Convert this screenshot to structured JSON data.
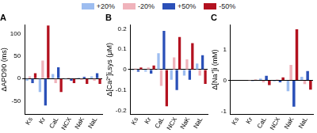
{
  "chart_data": [
    {
      "type": "bar",
      "title": "A",
      "y_label": "ΔAPD90 (ms)",
      "legend": "top",
      "grid": false,
      "categories": [
        "Ks",
        "Kr",
        "CaL",
        "NCX",
        "NaK",
        "NaL"
      ],
      "series": [
        {
          "name": "+20%",
          "color": "#9dbdf0",
          "values": [
            -5,
            -30,
            10,
            -2,
            2,
            5
          ]
        },
        {
          "name": "-20%",
          "color": "#f0b3bb",
          "values": [
            5,
            40,
            -10,
            2,
            -3,
            -5
          ]
        },
        {
          "name": "+50%",
          "color": "#2b50b8",
          "values": [
            -10,
            -60,
            25,
            -5,
            4,
            12
          ]
        },
        {
          "name": "-50%",
          "color": "#b3111f",
          "values": [
            12,
            118,
            -30,
            -10,
            -12,
            -12
          ]
        }
      ],
      "ylim": [
        -80,
        120
      ],
      "yticks": [
        -50,
        0,
        50,
        100
      ]
    },
    {
      "type": "bar",
      "title": "B",
      "y_label": "Δ[Ca²⁺]i,sys (μM)",
      "grid": false,
      "categories": [
        "Ks",
        "Kr",
        "CaL",
        "NCX",
        "NaK",
        "NaL"
      ],
      "series": [
        {
          "name": "+20%",
          "color": "#9dbdf0",
          "values": [
            -0.005,
            -0.01,
            0.08,
            -0.05,
            -0.03,
            0.03
          ]
        },
        {
          "name": "-20%",
          "color": "#f0b3bb",
          "values": [
            0.005,
            0.01,
            -0.08,
            0.06,
            0.05,
            -0.03
          ]
        },
        {
          "name": "+50%",
          "color": "#2b50b8",
          "values": [
            -0.01,
            -0.02,
            0.19,
            -0.1,
            -0.05,
            0.07
          ]
        },
        {
          "name": "-50%",
          "color": "#b3111f",
          "values": [
            0.01,
            0.02,
            -0.18,
            0.16,
            0.13,
            -0.07
          ]
        }
      ],
      "ylim": [
        -0.22,
        0.22
      ],
      "yticks": [
        -0.2,
        -0.1,
        0,
        0.1,
        0.2
      ]
    },
    {
      "type": "bar",
      "title": "C",
      "y_label": "Δ[Na⁺]i (mM)",
      "grid": false,
      "categories": [
        "Ks",
        "Kr",
        "CaL",
        "NCX",
        "NaK",
        "NaL"
      ],
      "series": [
        {
          "name": "+20%",
          "color": "#9dbdf0",
          "values": [
            0,
            -0.01,
            0.06,
            -0.03,
            -0.35,
            0.12
          ]
        },
        {
          "name": "-20%",
          "color": "#f0b3bb",
          "values": [
            0,
            0.01,
            -0.06,
            0.03,
            0.5,
            -0.12
          ]
        },
        {
          "name": "+50%",
          "color": "#2b50b8",
          "values": [
            0,
            -0.02,
            0.15,
            -0.06,
            -0.85,
            0.3
          ]
        },
        {
          "name": "-50%",
          "color": "#b3111f",
          "values": [
            0,
            0.02,
            -0.15,
            0.1,
            1.65,
            -0.3
          ]
        }
      ],
      "ylim": [
        -1.1,
        1.8
      ],
      "yticks": [
        -1,
        0,
        1
      ]
    }
  ]
}
